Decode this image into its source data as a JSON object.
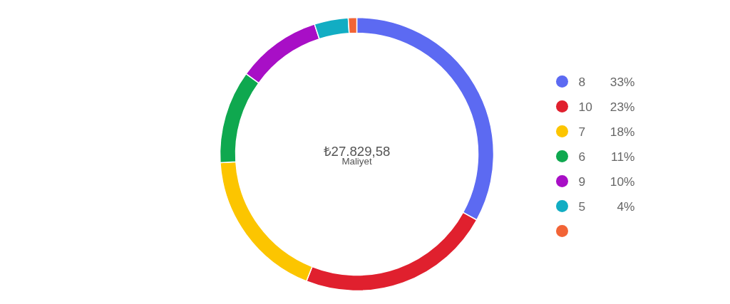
{
  "chart_data": {
    "type": "donut",
    "categories": [
      "8",
      "10",
      "7",
      "6",
      "9",
      "5",
      null
    ],
    "values": [
      33,
      23,
      18,
      11,
      10,
      4,
      1
    ],
    "colors": [
      "#5c6af2",
      "#e0202e",
      "#fcc500",
      "#0fa84f",
      "#a80fc6",
      "#12adc3",
      "#f26436"
    ],
    "value_labels": [
      "33%",
      "23%",
      "18%",
      "11%",
      "10%",
      "4%",
      null
    ],
    "annotations": [
      "₺27.829,58",
      "Maliyet"
    ],
    "legend": "right"
  }
}
